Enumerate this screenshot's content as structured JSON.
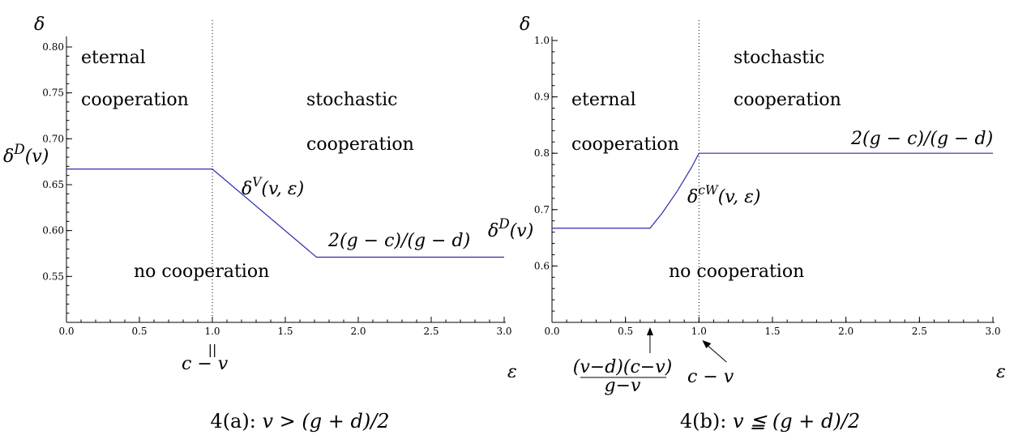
{
  "chart_data": [
    {
      "type": "line",
      "x_label": "ε",
      "y_label": "δ",
      "xlim": [
        0,
        3
      ],
      "ylim": [
        0.5,
        0.8
      ],
      "x_ticks": [
        "0.0",
        "0.5",
        "1.0",
        "1.5",
        "2.0",
        "2.5",
        "3.0"
      ],
      "y_ticks": [
        "0.55",
        "0.60",
        "0.65",
        "0.70",
        "0.75",
        "0.80"
      ],
      "series": [
        {
          "x": [
            0,
            1.0,
            1.714,
            3.0
          ],
          "y": [
            0.667,
            0.667,
            0.571,
            0.571
          ]
        }
      ],
      "vertical_line_x": 1.0,
      "regions": [
        "eternal",
        "cooperation",
        "stochastic",
        "cooperation",
        "no cooperation"
      ],
      "curve_labels": [
        "δ^V(v, ε)",
        "2(g − c)/(g − d)"
      ],
      "y_marker": "δ^D(v)",
      "x_marker": {
        "eq": "||",
        "text": "c − v"
      },
      "caption": "4(a): v > (g + d)/2"
    },
    {
      "type": "line",
      "x_label": "ε",
      "y_label": "δ",
      "xlim": [
        0,
        3
      ],
      "ylim": [
        0.5,
        1.0
      ],
      "x_ticks": [
        "0.0",
        "0.5",
        "1.0",
        "1.5",
        "2.0",
        "2.5",
        "3.0"
      ],
      "y_ticks": [
        "0.6",
        "0.7",
        "0.8",
        "0.9",
        "1.0"
      ],
      "series": [
        {
          "x": [
            0,
            0.667,
            0.75,
            0.85,
            0.95,
            1.0,
            3.0
          ],
          "y": [
            0.667,
            0.667,
            0.694,
            0.732,
            0.775,
            0.8,
            0.8
          ]
        }
      ],
      "vertical_line_x": 1.0,
      "regions": [
        "eternal",
        "cooperation",
        "stochastic",
        "cooperation",
        "no cooperation"
      ],
      "curve_labels": [
        "δ^cW(v, ε)",
        "2(g − c)/(g − d)"
      ],
      "y_marker": "δ^D(v)",
      "x_markers": [
        {
          "numerator": "(v−d)(c−v)",
          "denominator": "g−v"
        },
        {
          "text": "c − v"
        }
      ],
      "caption": "4(b): v ≦ (g + d)/2"
    }
  ]
}
